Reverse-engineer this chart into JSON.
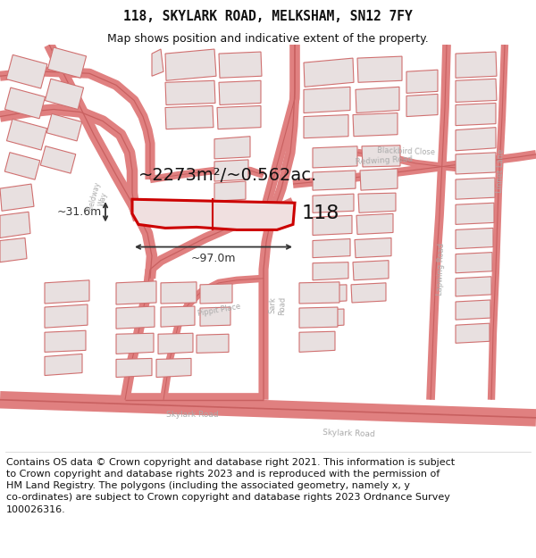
{
  "title": "118, SKYLARK ROAD, MELKSHAM, SN12 7FY",
  "subtitle": "Map shows position and indicative extent of the property.",
  "footer": "Contains OS data © Crown copyright and database right 2021. This information is subject to Crown copyright and database rights 2023 and is reproduced with the permission of HM Land Registry. The polygons (including the associated geometry, namely x, y co-ordinates) are subject to Crown copyright and database rights 2023 Ordnance Survey 100026316.",
  "highlight_color": "#cc0000",
  "text_color": "#111111",
  "road_color": "#e08080",
  "road_lw_color": "#c86060",
  "bld_edge": "#d07070",
  "bld_face": "#e8e0e0",
  "map_bg": "#f8f4f4",
  "area_text": "~2273m²/~0.562ac.",
  "label_118": "118",
  "dim_width": "~97.0m",
  "dim_height": "~31.6m",
  "title_fontsize": 10.5,
  "subtitle_fontsize": 9.0,
  "footer_fontsize": 8.0,
  "area_fontsize": 14,
  "label_fontsize": 16,
  "figsize": [
    6.0,
    6.25
  ],
  "dpi": 100
}
